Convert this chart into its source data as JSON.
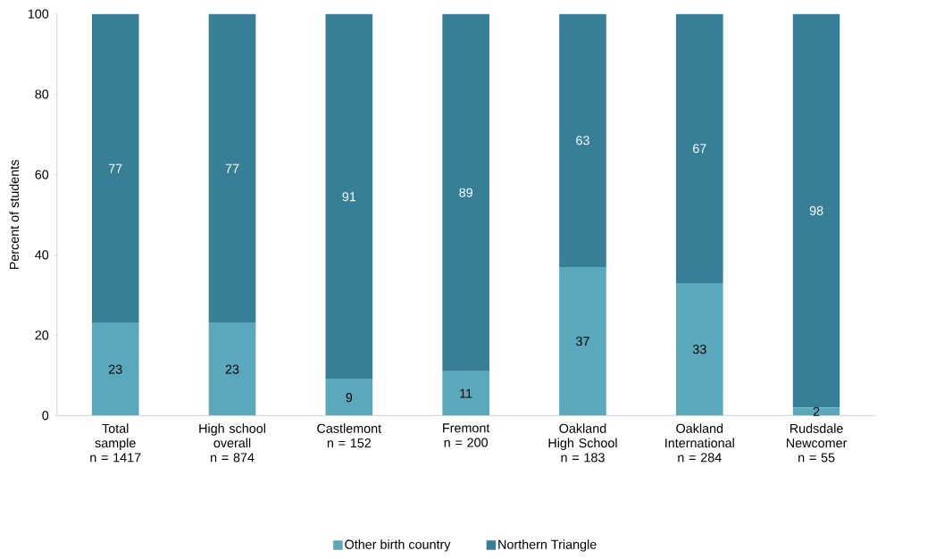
{
  "chart_data": {
    "type": "bar",
    "stacked": true,
    "ylabel": "Percent of students",
    "categories": [
      "Total\nsample\nn = 1417",
      "High school\noverall\nn = 874",
      "Castlemont\nn = 152",
      "Fremont\nn = 200",
      "Oakland\nHigh School\nn = 183",
      "Oakland\nInternational\nn = 284",
      "Rudsdale\nNewcomer\nn = 55"
    ],
    "series": [
      {
        "name": "Other birth country",
        "color": "#5aa8bb",
        "values": [
          23,
          23,
          9,
          11,
          37,
          33,
          2
        ]
      },
      {
        "name": "Northern Triangle",
        "color": "#367f97",
        "values": [
          77,
          77,
          91,
          89,
          63,
          67,
          98
        ]
      }
    ],
    "ylim": [
      0,
      100
    ],
    "yticks": [
      0,
      20,
      40,
      60,
      80,
      100
    ],
    "data_labels": true,
    "legend": "bottom",
    "grid": false
  }
}
